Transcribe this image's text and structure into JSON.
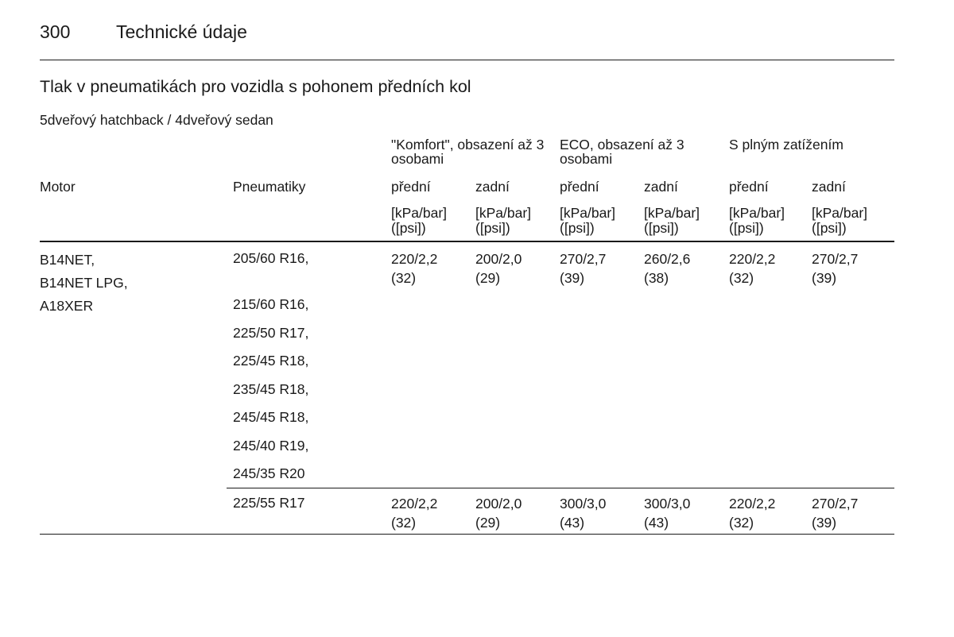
{
  "header": {
    "page_number": "300",
    "section": "Technické údaje"
  },
  "table": {
    "title": "Tlak v pneumatikách pro vozidla s pohonem předních kol",
    "subtitle": "5dveřový hatchback / 4dveřový sedan",
    "groups": [
      "\"Komfort\", obsazení až 3 osobami",
      "ECO, obsazení až 3 osobami",
      "S plným zatížením"
    ],
    "col_motor": "Motor",
    "col_tyres": "Pneumatiky",
    "col_front": "přední",
    "col_rear": "zadní",
    "unit": "[kPa/bar] ([psi])",
    "motors": [
      "B14NET,",
      "B14NET LPG,",
      "A18XER"
    ],
    "rows": [
      {
        "tyres": [
          "205/60 R16,",
          "215/60 R16,",
          "225/50 R17,",
          "225/45 R18,",
          "235/45 R18,",
          "245/45 R18,",
          "245/40 R19,",
          "245/35 R20"
        ],
        "values": [
          "220/2,2 (32)",
          "200/2,0 (29)",
          "270/2,7 (39)",
          "260/2,6 (38)",
          "220/2,2 (32)",
          "270/2,7 (39)"
        ]
      },
      {
        "tyres": [
          "225/55 R17"
        ],
        "values": [
          "220/2,2 (32)",
          "200/2,0 (29)",
          "300/3,0 (43)",
          "300/3,0 (43)",
          "220/2,2 (32)",
          "270/2,7 (39)"
        ]
      }
    ]
  }
}
